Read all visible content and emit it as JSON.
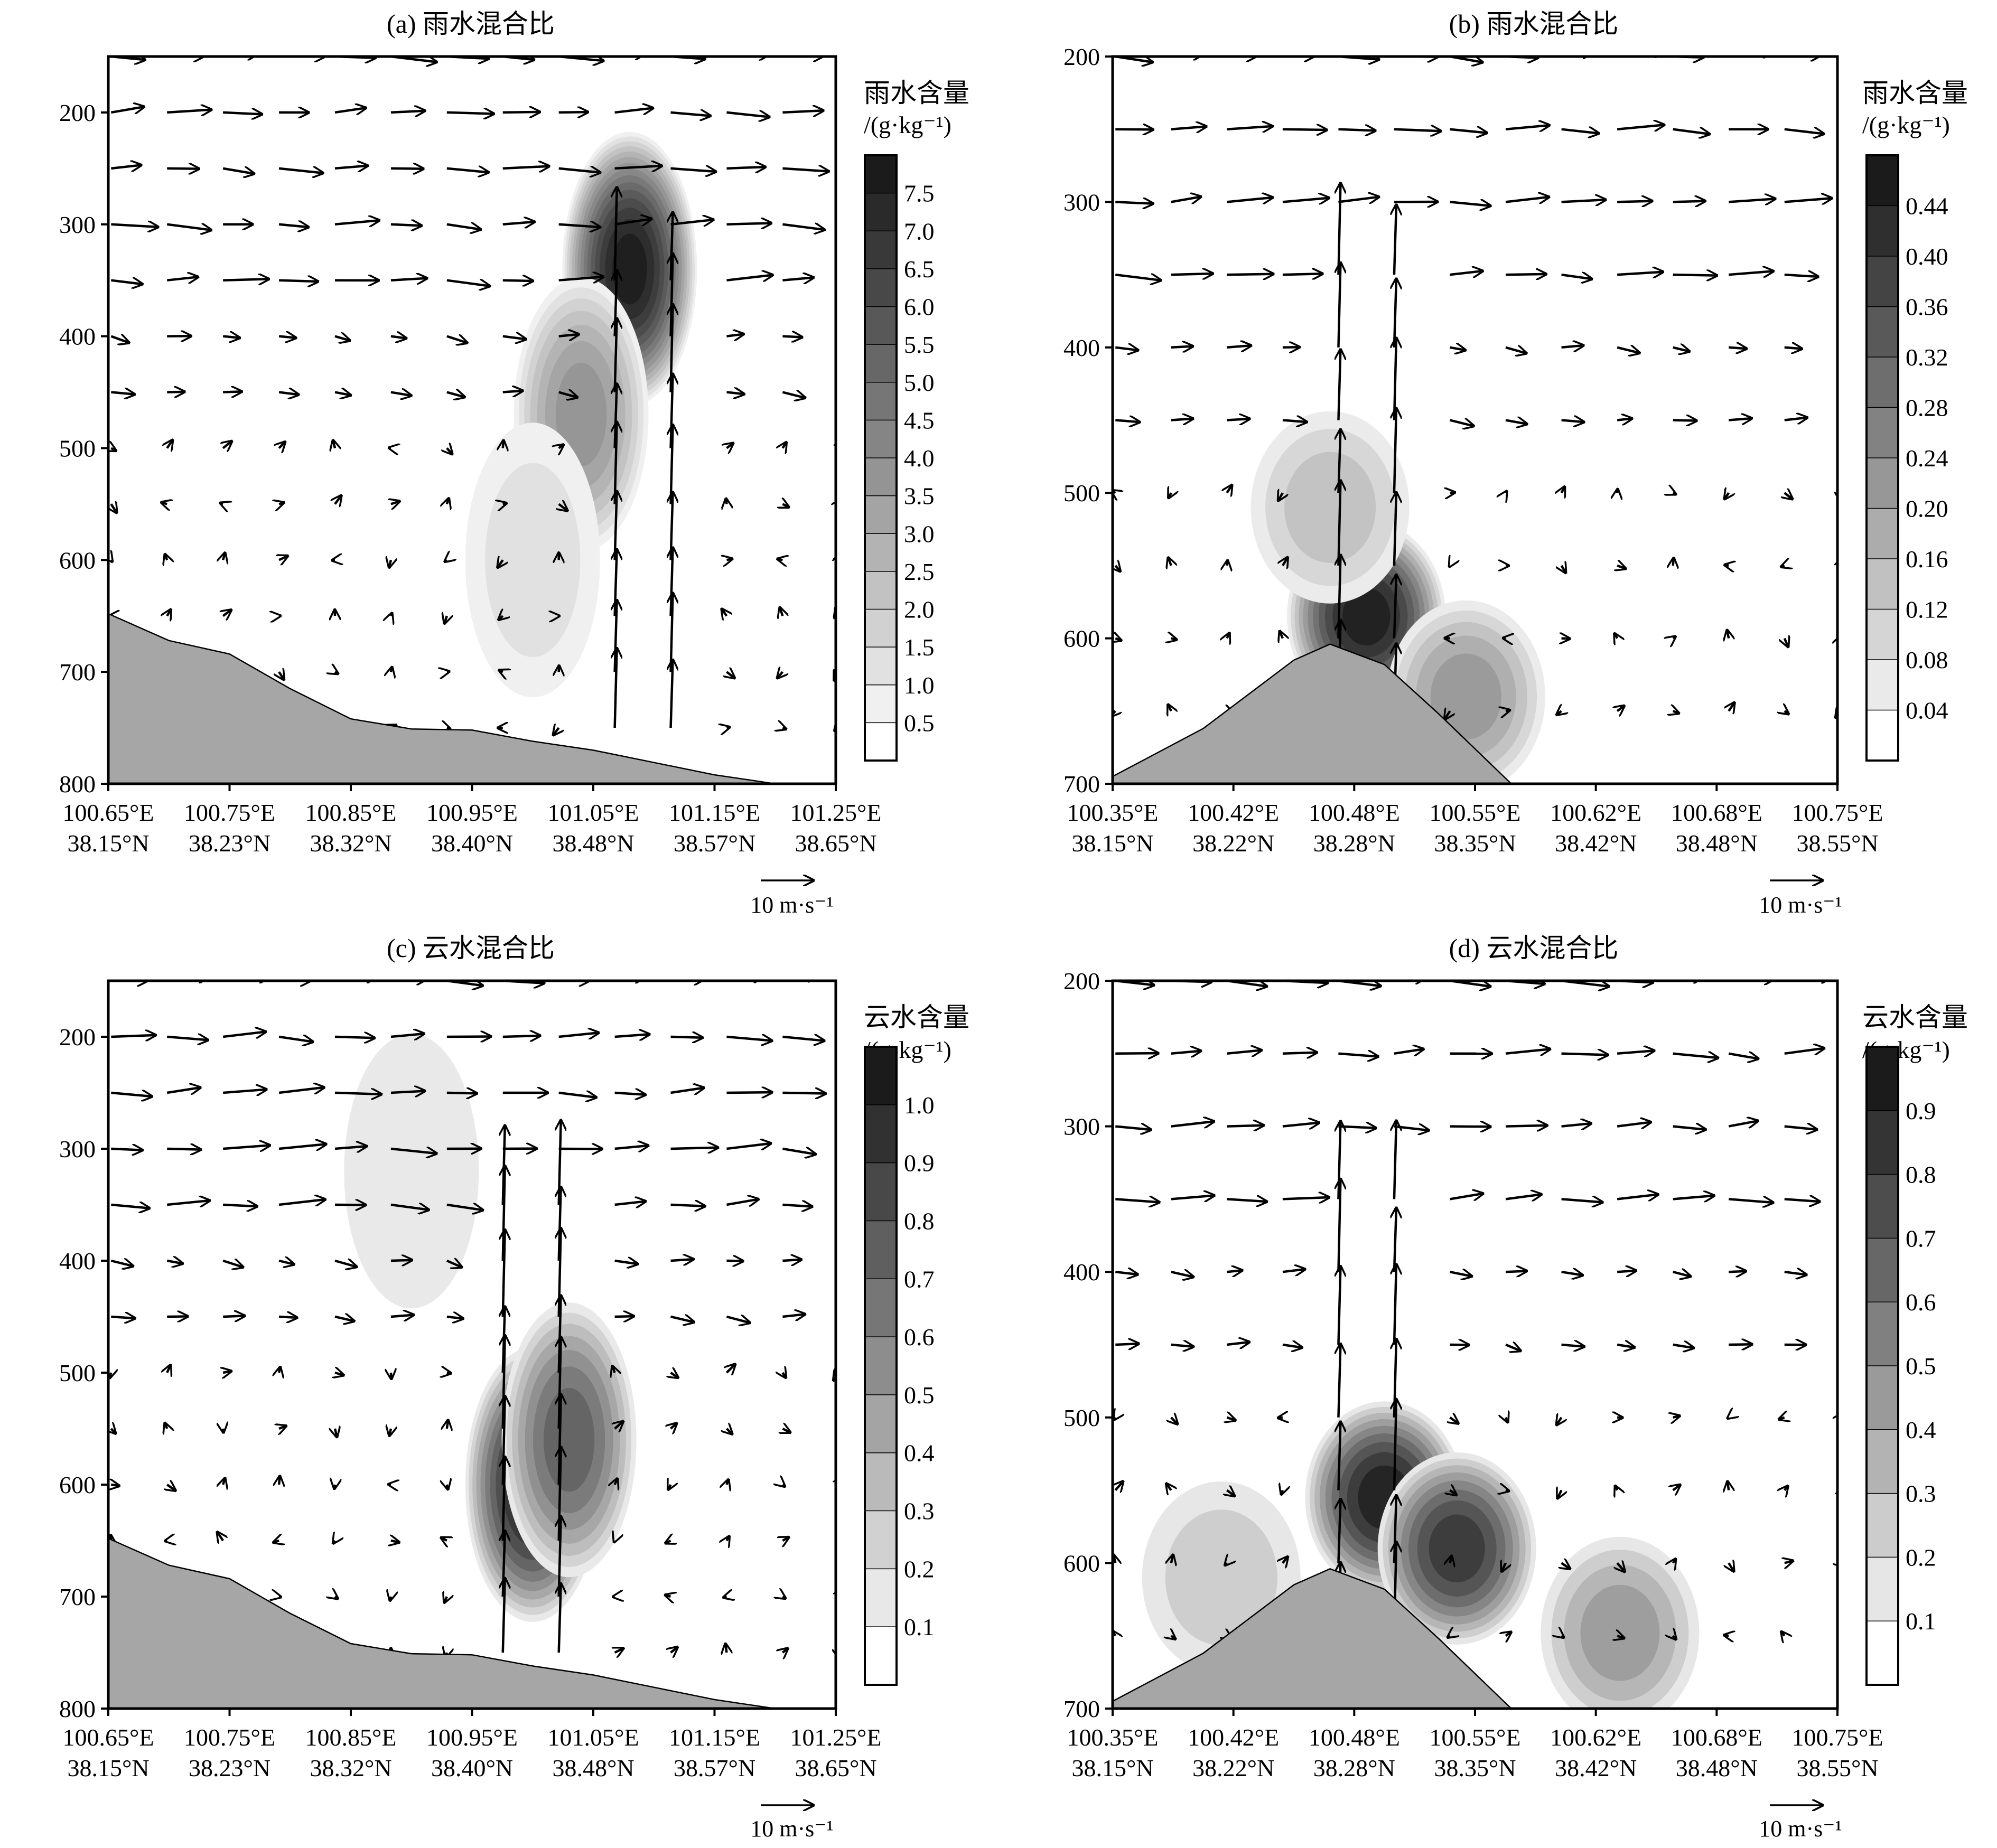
{
  "charts": [
    {
      "title": "(a) 雨水混合比",
      "y_ticks": [
        200,
        300,
        400,
        500,
        600,
        700,
        800
      ],
      "x_tick_lon": [
        "100.65°E",
        "100.75°E",
        "100.85°E",
        "100.95°E",
        "101.05°E",
        "101.15°E",
        "101.25°E"
      ],
      "x_tick_lat": [
        "38.15°N",
        "38.23°N",
        "38.32°N",
        "38.40°N",
        "38.48°N",
        "38.57°N",
        "38.65°N"
      ],
      "colorbar": {
        "title": "雨水含量",
        "unit": "/(g·kg⁻¹)",
        "labels": [
          "7.5",
          "7.0",
          "6.5",
          "6.0",
          "5.5",
          "5.0",
          "4.5",
          "4.0",
          "3.5",
          "3.0",
          "2.5",
          "2.0",
          "1.5",
          "1.0",
          "0.5"
        ]
      },
      "ref_vector": "10 m·s⁻¹"
    },
    {
      "title": "(b) 雨水混合比",
      "y_ticks": [
        200,
        300,
        400,
        500,
        600,
        700
      ],
      "x_tick_lon": [
        "100.35°E",
        "100.42°E",
        "100.48°E",
        "100.55°E",
        "100.62°E",
        "100.68°E",
        "100.75°E"
      ],
      "x_tick_lat": [
        "38.15°N",
        "38.22°N",
        "38.28°N",
        "38.35°N",
        "38.42°N",
        "38.48°N",
        "38.55°N"
      ],
      "colorbar": {
        "title": "雨水含量",
        "unit": "/(g·kg⁻¹)",
        "labels": [
          "0.44",
          "0.40",
          "0.36",
          "0.32",
          "0.28",
          "0.24",
          "0.20",
          "0.16",
          "0.12",
          "0.08",
          "0.04"
        ]
      },
      "ref_vector": "10 m·s⁻¹"
    },
    {
      "title": "(c) 云水混合比",
      "y_ticks": [
        200,
        300,
        400,
        500,
        600,
        700,
        800
      ],
      "x_tick_lon": [
        "100.65°E",
        "100.75°E",
        "100.85°E",
        "100.95°E",
        "101.05°E",
        "101.15°E",
        "101.25°E"
      ],
      "x_tick_lat": [
        "38.15°N",
        "38.23°N",
        "38.32°N",
        "38.40°N",
        "38.48°N",
        "38.57°N",
        "38.65°N"
      ],
      "colorbar": {
        "title": "云水含量",
        "unit": "/(g·kg⁻¹)",
        "labels": [
          "1.0",
          "0.9",
          "0.8",
          "0.7",
          "0.6",
          "0.5",
          "0.4",
          "0.3",
          "0.2",
          "0.1"
        ]
      },
      "ref_vector": "10 m·s⁻¹"
    },
    {
      "title": "(d) 云水混合比",
      "y_ticks": [
        200,
        300,
        400,
        500,
        600,
        700
      ],
      "x_tick_lon": [
        "100.35°E",
        "100.42°E",
        "100.48°E",
        "100.55°E",
        "100.62°E",
        "100.68°E",
        "100.75°E"
      ],
      "x_tick_lat": [
        "38.15°N",
        "38.22°N",
        "38.28°N",
        "38.35°N",
        "38.42°N",
        "38.48°N",
        "38.55°N"
      ],
      "colorbar": {
        "title": "云水含量",
        "unit": "/(g·kg⁻¹)",
        "labels": [
          "0.9",
          "0.8",
          "0.7",
          "0.6",
          "0.5",
          "0.4",
          "0.3",
          "0.2",
          "0.1"
        ]
      },
      "ref_vector": "10 m·s⁻¹"
    }
  ],
  "chart_data": [
    {
      "type": "heatmap",
      "title": "(a) 雨水混合比",
      "variable": "雨水混合比",
      "units": "g·kg⁻¹",
      "overlay": "wind vectors",
      "xlim_lon": [
        100.65,
        101.25
      ],
      "xlim_lat": [
        38.15,
        38.65
      ],
      "ylim": [
        150,
        800
      ],
      "y_inverted": true,
      "color_levels": [
        0.5,
        1.0,
        1.5,
        2.0,
        2.5,
        3.0,
        3.5,
        4.0,
        4.5,
        5.0,
        5.5,
        6.0,
        6.5,
        7.0,
        7.5
      ],
      "blobs": [
        {
          "lon": 101.08,
          "p": 340,
          "value": 7.8
        },
        {
          "lon": 101.04,
          "p": 470,
          "value": 3.5
        },
        {
          "lon": 101.0,
          "p": 600,
          "value": 1.0
        }
      ],
      "terrain": [
        [
          100.65,
          648
        ],
        [
          100.7,
          672
        ],
        [
          100.75,
          684
        ],
        [
          100.8,
          715
        ],
        [
          100.85,
          742
        ],
        [
          100.9,
          751
        ],
        [
          100.95,
          752
        ],
        [
          101.0,
          762
        ],
        [
          101.05,
          770
        ],
        [
          101.1,
          781
        ],
        [
          101.15,
          792
        ],
        [
          101.2,
          800
        ],
        [
          101.25,
          800
        ]
      ],
      "grid": false
    },
    {
      "type": "heatmap",
      "title": "(b) 雨水混合比",
      "variable": "雨水混合比",
      "units": "g·kg⁻¹",
      "overlay": "wind vectors",
      "xlim_lon": [
        100.35,
        100.75
      ],
      "xlim_lat": [
        38.15,
        38.55
      ],
      "ylim": [
        200,
        700
      ],
      "y_inverted": true,
      "color_levels": [
        0.04,
        0.08,
        0.12,
        0.16,
        0.2,
        0.24,
        0.28,
        0.32,
        0.36,
        0.4,
        0.44
      ],
      "blobs": [
        {
          "lon": 100.49,
          "p": 585,
          "value": 0.46
        },
        {
          "lon": 100.47,
          "p": 510,
          "value": 0.12
        },
        {
          "lon": 100.545,
          "p": 640,
          "value": 0.22
        }
      ],
      "terrain": [
        [
          100.35,
          695
        ],
        [
          100.4,
          662
        ],
        [
          100.45,
          615
        ],
        [
          100.47,
          604
        ],
        [
          100.5,
          618
        ],
        [
          100.53,
          652
        ],
        [
          100.57,
          700
        ],
        [
          100.75,
          700
        ]
      ],
      "grid": false
    },
    {
      "type": "heatmap",
      "title": "(c) 云水混合比",
      "variable": "云水混合比",
      "units": "g·kg⁻¹",
      "overlay": "wind vectors",
      "xlim_lon": [
        100.65,
        101.25
      ],
      "xlim_lat": [
        38.15,
        38.65
      ],
      "ylim": [
        150,
        800
      ],
      "y_inverted": true,
      "color_levels": [
        0.1,
        0.2,
        0.3,
        0.4,
        0.5,
        0.6,
        0.7,
        0.8,
        0.9,
        1.0
      ],
      "blobs": [
        {
          "lon": 101.0,
          "p": 600,
          "value": 1.05
        },
        {
          "lon": 101.03,
          "p": 560,
          "value": 0.75
        },
        {
          "lon": 100.9,
          "p": 320,
          "value": 0.12
        }
      ],
      "terrain": [
        [
          100.65,
          648
        ],
        [
          100.7,
          672
        ],
        [
          100.75,
          684
        ],
        [
          100.8,
          715
        ],
        [
          100.85,
          742
        ],
        [
          100.9,
          751
        ],
        [
          100.95,
          752
        ],
        [
          101.0,
          762
        ],
        [
          101.05,
          770
        ],
        [
          101.1,
          781
        ],
        [
          101.15,
          792
        ],
        [
          101.2,
          800
        ],
        [
          101.25,
          800
        ]
      ],
      "grid": false
    },
    {
      "type": "heatmap",
      "title": "(d) 云水混合比",
      "variable": "云水混合比",
      "units": "g·kg⁻¹",
      "overlay": "wind vectors",
      "xlim_lon": [
        100.35,
        100.75
      ],
      "xlim_lat": [
        38.15,
        38.55
      ],
      "ylim": [
        200,
        700
      ],
      "y_inverted": true,
      "color_levels": [
        0.1,
        0.2,
        0.3,
        0.4,
        0.5,
        0.6,
        0.7,
        0.8,
        0.9
      ],
      "blobs": [
        {
          "lon": 100.5,
          "p": 555,
          "value": 0.95
        },
        {
          "lon": 100.54,
          "p": 590,
          "value": 0.8
        },
        {
          "lon": 100.63,
          "p": 648,
          "value": 0.45
        },
        {
          "lon": 100.41,
          "p": 610,
          "value": 0.25
        }
      ],
      "terrain": [
        [
          100.35,
          695
        ],
        [
          100.4,
          662
        ],
        [
          100.45,
          615
        ],
        [
          100.47,
          604
        ],
        [
          100.5,
          618
        ],
        [
          100.53,
          652
        ],
        [
          100.57,
          700
        ],
        [
          100.75,
          700
        ]
      ],
      "grid": false
    }
  ]
}
